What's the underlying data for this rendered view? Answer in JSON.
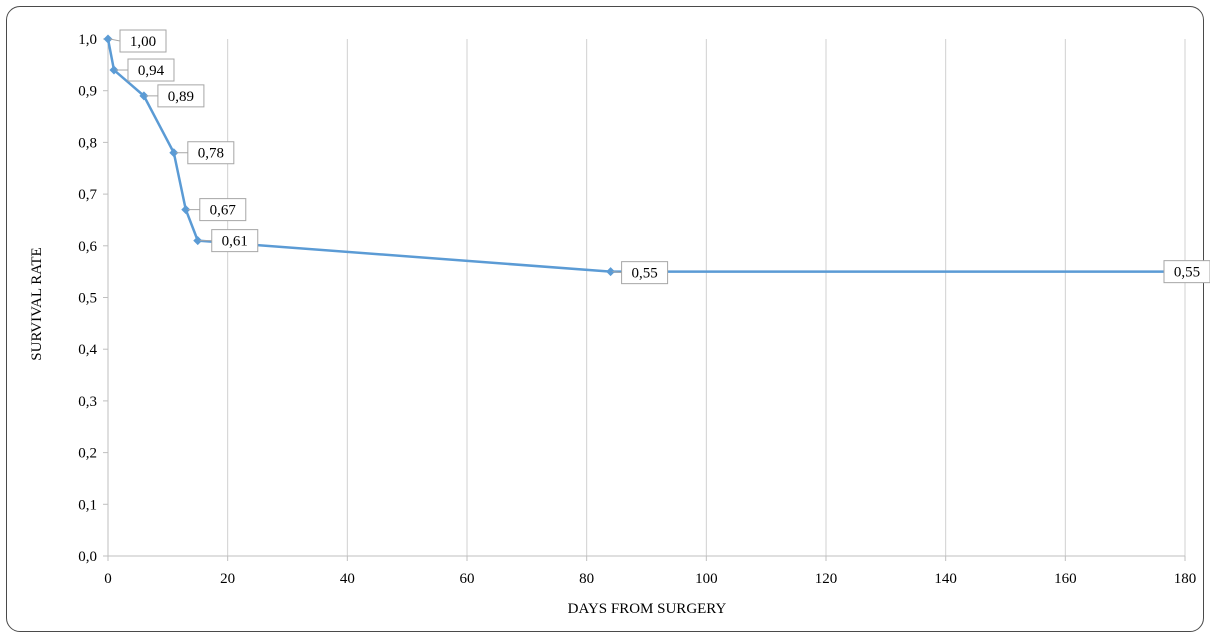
{
  "chart_data": {
    "type": "line",
    "title": "",
    "xlabel": "DAYS FROM SURGERY",
    "ylabel": "SURVIVAL RATE",
    "xlim": [
      0,
      180
    ],
    "ylim": [
      0,
      1
    ],
    "xticks": [
      0,
      20,
      40,
      60,
      80,
      100,
      120,
      140,
      160,
      180
    ],
    "xtick_labels": [
      "0",
      "20",
      "40",
      "60",
      "80",
      "100",
      "120",
      "140",
      "160",
      "180"
    ],
    "yticks": [
      0,
      0.1,
      0.2,
      0.3,
      0.4,
      0.5,
      0.6,
      0.7,
      0.8,
      0.9,
      1.0
    ],
    "ytick_labels": [
      "0,0",
      "0,1",
      "0,2",
      "0,3",
      "0,4",
      "0,5",
      "0,6",
      "0,7",
      "0,8",
      "0,9",
      "1,0"
    ],
    "grid": "vertical",
    "legend": "none",
    "series": [
      {
        "color": "#5b9bd5",
        "points": [
          {
            "x": 0,
            "y": 1.0,
            "label": "1,00"
          },
          {
            "x": 1,
            "y": 0.94,
            "label": "0,94"
          },
          {
            "x": 6,
            "y": 0.89,
            "label": "0,89"
          },
          {
            "x": 11,
            "y": 0.78,
            "label": "0,78"
          },
          {
            "x": 13,
            "y": 0.67,
            "label": "0,67"
          },
          {
            "x": 15,
            "y": 0.61,
            "label": "0,61"
          },
          {
            "x": 84,
            "y": 0.55,
            "label": "0,55"
          },
          {
            "x": 180,
            "y": 0.55,
            "label": "0,55"
          }
        ]
      }
    ]
  }
}
